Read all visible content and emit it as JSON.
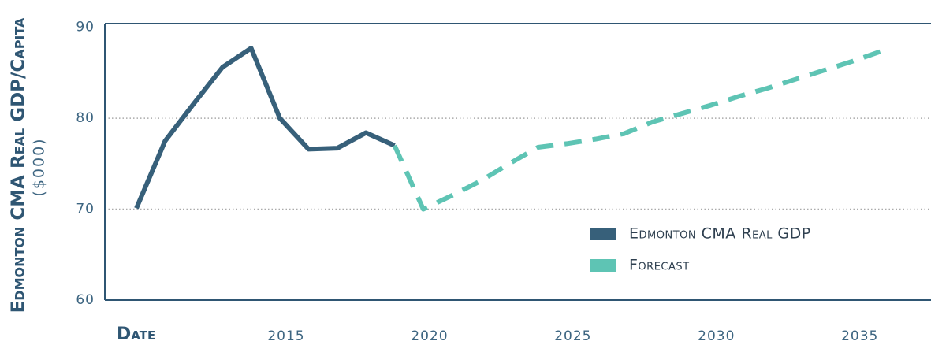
{
  "chart_data": {
    "type": "line",
    "x_label": "Date",
    "y_label": "Edmonton CMA Real GDP/Capita",
    "y_unit": "($000)",
    "x": [
      2010,
      2011,
      2012,
      2013,
      2014,
      2015,
      2016,
      2017,
      2018,
      2019,
      2020,
      2021,
      2022,
      2023,
      2024,
      2025,
      2026,
      2027,
      2028,
      2029,
      2030,
      2031,
      2032,
      2033,
      2034,
      2035,
      2036
    ],
    "series": [
      {
        "name": "Edmonton CMA Real GDP",
        "color": "#37607a",
        "dashed": false,
        "values": [
          70.1,
          77.5,
          81.6,
          85.6,
          87.7,
          80.0,
          76.6,
          76.7,
          78.4,
          77.0,
          null,
          null,
          null,
          null,
          null,
          null,
          null,
          null,
          null,
          null,
          null,
          null,
          null,
          null,
          null,
          null,
          null
        ]
      },
      {
        "name": "Forecast",
        "color": "#5ec4b4",
        "dashed": true,
        "values": [
          null,
          null,
          null,
          null,
          null,
          null,
          null,
          null,
          null,
          77.0,
          70.0,
          71.5,
          73.1,
          75.0,
          76.8,
          77.2,
          77.7,
          78.3,
          79.6,
          80.5,
          81.4,
          82.4,
          83.3,
          84.3,
          85.3,
          86.3,
          87.4
        ]
      }
    ],
    "xlim": [
      2008.9,
      2037.7
    ],
    "xticks": [
      2015,
      2020,
      2025,
      2030,
      2035
    ],
    "ylim": [
      60,
      90.4
    ],
    "yticks": [
      60,
      70,
      80,
      90
    ],
    "grid": true,
    "legend": "lower right"
  }
}
